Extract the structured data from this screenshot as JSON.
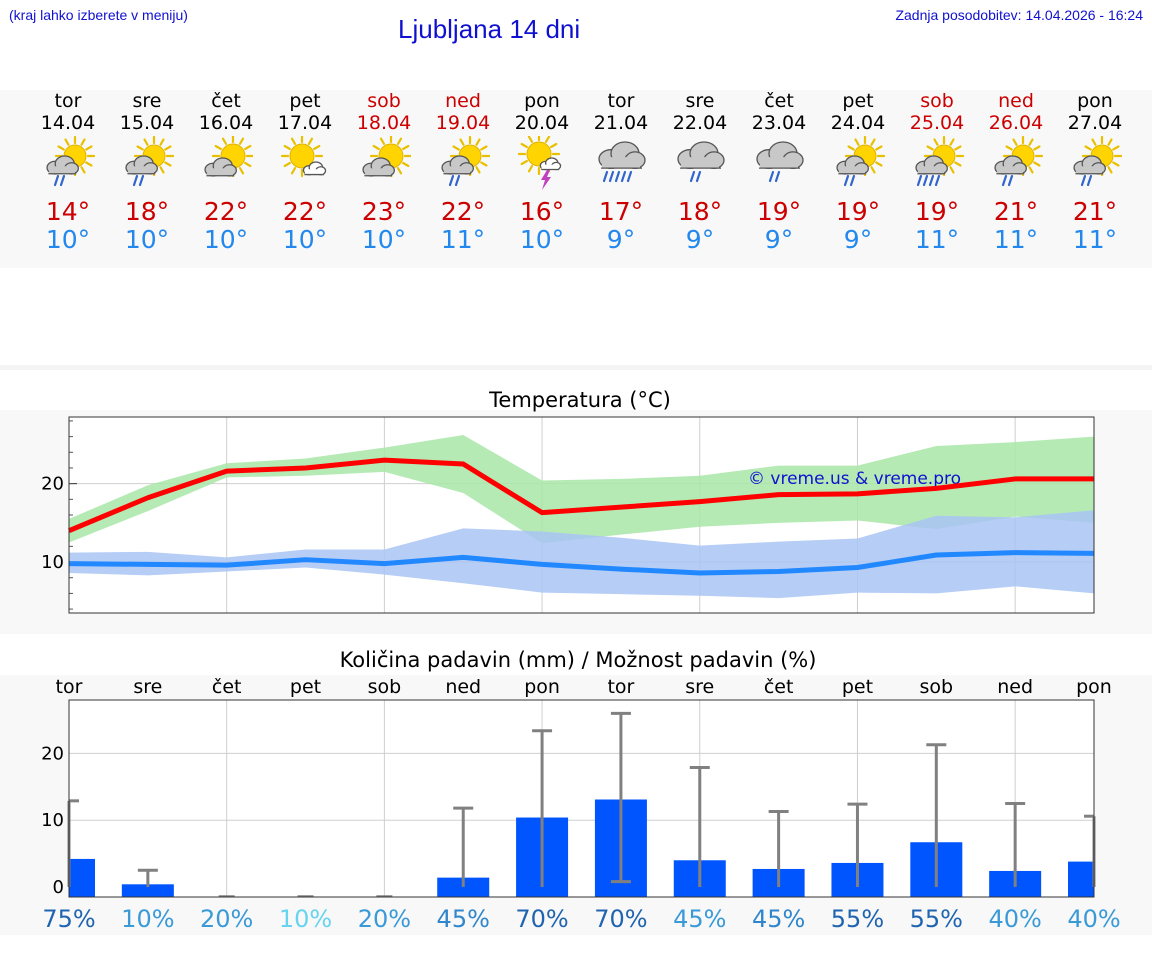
{
  "header": {
    "note": "(kraj lahko izberete v meniju)",
    "title": "Ljubljana 14 dni",
    "updated": "Zadnja posodobitev: 14.04.2026 - 16:24"
  },
  "colors": {
    "link_blue": "#1010d0",
    "max_red": "#cc0000",
    "min_blue": "#2288ee",
    "bar_blue": "#0055ff",
    "green_band": "#a8e6a8",
    "blue_band": "#a9c4f5"
  },
  "days": [
    {
      "name": "tor",
      "date": "14.04",
      "max": "14°",
      "min": "10°",
      "icon": "sun-cloud-light-rain-icon",
      "weekend": false
    },
    {
      "name": "sre",
      "date": "15.04",
      "max": "18°",
      "min": "10°",
      "icon": "sun-cloud-light-rain-icon",
      "weekend": false
    },
    {
      "name": "čet",
      "date": "16.04",
      "max": "22°",
      "min": "10°",
      "icon": "sun-cloud-icon",
      "weekend": false
    },
    {
      "name": "pet",
      "date": "17.04",
      "max": "22°",
      "min": "10°",
      "icon": "sun-small-cloud-icon",
      "weekend": false
    },
    {
      "name": "sob",
      "date": "18.04",
      "max": "23°",
      "min": "10°",
      "icon": "sun-cloud-icon",
      "weekend": true
    },
    {
      "name": "ned",
      "date": "19.04",
      "max": "22°",
      "min": "11°",
      "icon": "sun-cloud-light-rain-icon",
      "weekend": true
    },
    {
      "name": "pon",
      "date": "20.04",
      "max": "16°",
      "min": "10°",
      "icon": "sun-thunder-icon",
      "weekend": false
    },
    {
      "name": "tor",
      "date": "21.04",
      "max": "17°",
      "min": "9°",
      "icon": "cloud-heavy-rain-icon",
      "weekend": false
    },
    {
      "name": "sre",
      "date": "22.04",
      "max": "18°",
      "min": "9°",
      "icon": "cloud-light-rain-icon",
      "weekend": false
    },
    {
      "name": "čet",
      "date": "23.04",
      "max": "19°",
      "min": "9°",
      "icon": "cloud-light-rain-icon",
      "weekend": false
    },
    {
      "name": "pet",
      "date": "24.04",
      "max": "19°",
      "min": "9°",
      "icon": "sun-cloud-light-rain-icon",
      "weekend": false
    },
    {
      "name": "sob",
      "date": "25.04",
      "max": "19°",
      "min": "11°",
      "icon": "sun-cloud-heavy-rain-icon",
      "weekend": true
    },
    {
      "name": "ned",
      "date": "26.04",
      "max": "21°",
      "min": "11°",
      "icon": "sun-cloud-light-rain-icon",
      "weekend": true
    },
    {
      "name": "pon",
      "date": "27.04",
      "max": "21°",
      "min": "11°",
      "icon": "sun-cloud-light-rain-icon",
      "weekend": false
    }
  ],
  "chart_data": [
    {
      "type": "line",
      "title": "Temperatura (°C)",
      "watermark": "© vreme.us & vreme.pro",
      "x": [
        0,
        1,
        2,
        3,
        4,
        5,
        6,
        7,
        8,
        9,
        10,
        11,
        12,
        13
      ],
      "ylim": [
        3.5,
        28.5
      ],
      "yticks": [
        10,
        20
      ],
      "ytick_labels": [
        "10",
        "20"
      ],
      "grid": true,
      "series": [
        {
          "name": "max",
          "color": "#ff0000",
          "values": [
            14,
            18.2,
            21.6,
            22,
            23,
            22.5,
            16.3,
            17,
            17.7,
            18.6,
            18.7,
            19.4,
            20.6,
            20.6
          ]
        },
        {
          "name": "min",
          "color": "#2288ff",
          "values": [
            9.8,
            9.7,
            9.6,
            10.3,
            9.8,
            10.6,
            9.7,
            9.1,
            8.6,
            8.8,
            9.3,
            10.9,
            11.2,
            11.1
          ]
        }
      ],
      "bands": [
        {
          "name": "max-range",
          "color": "#a8e6a8",
          "lower": [
            12.5,
            16.5,
            20.8,
            21,
            21.5,
            18.8,
            12.4,
            13.5,
            14.5,
            15,
            15.3,
            14.2,
            15.8,
            15
          ],
          "upper": [
            15.5,
            19.8,
            22.6,
            23.2,
            24.6,
            26.2,
            20.4,
            20.6,
            21,
            22.3,
            22.3,
            24.8,
            25.3,
            26
          ]
        },
        {
          "name": "min-range",
          "color": "#a9c4f5",
          "lower": [
            8.6,
            8.3,
            8.8,
            9.3,
            8.4,
            7.3,
            6.1,
            5.9,
            5.7,
            5.4,
            6.1,
            6.0,
            6.9,
            6.0
          ],
          "upper": [
            11.2,
            11.3,
            10.6,
            11.6,
            11.6,
            14.3,
            13.9,
            13.1,
            12.1,
            12.6,
            13.0,
            15.9,
            15.7,
            16.6
          ]
        }
      ]
    },
    {
      "type": "bar",
      "title": "Količina padavin (mm) / Možnost padavin (%)",
      "categories": [
        "tor",
        "sre",
        "čet",
        "pet",
        "sob",
        "ned",
        "pon",
        "tor",
        "sre",
        "čet",
        "pet",
        "sob",
        "ned",
        "pon"
      ],
      "values": [
        4.2,
        0.4,
        0,
        0,
        0,
        1.4,
        10.4,
        13.1,
        4.0,
        2.7,
        3.6,
        6.7,
        2.4,
        3.8
      ],
      "error_low": [
        0,
        0,
        0,
        0,
        0,
        0,
        0,
        0.8,
        0,
        0,
        0,
        0,
        0,
        0
      ],
      "error_high": [
        12.9,
        2.5,
        0,
        0,
        0,
        11.8,
        23.4,
        26.0,
        17.9,
        11.3,
        12.4,
        21.3,
        12.5,
        10.6
      ],
      "ylim": [
        -1.5,
        28
      ],
      "yticks": [
        0,
        10,
        20
      ],
      "ytick_labels": [
        "0",
        "10",
        "20"
      ],
      "grid": true,
      "probability": [
        "75%",
        "10%",
        "20%",
        "10%",
        "20%",
        "45%",
        "70%",
        "70%",
        "45%",
        "45%",
        "55%",
        "55%",
        "40%",
        "40%"
      ],
      "probability_colors": [
        "#1f64b0",
        "#3a9ad8",
        "#3a9ad8",
        "#66d4ee",
        "#3a9ad8",
        "#2f86cc",
        "#1f64b0",
        "#1f64b0",
        "#3a9ad8",
        "#2f86cc",
        "#1f64b0",
        "#1f64b0",
        "#3a9ad8",
        "#3a9ad8"
      ]
    }
  ]
}
